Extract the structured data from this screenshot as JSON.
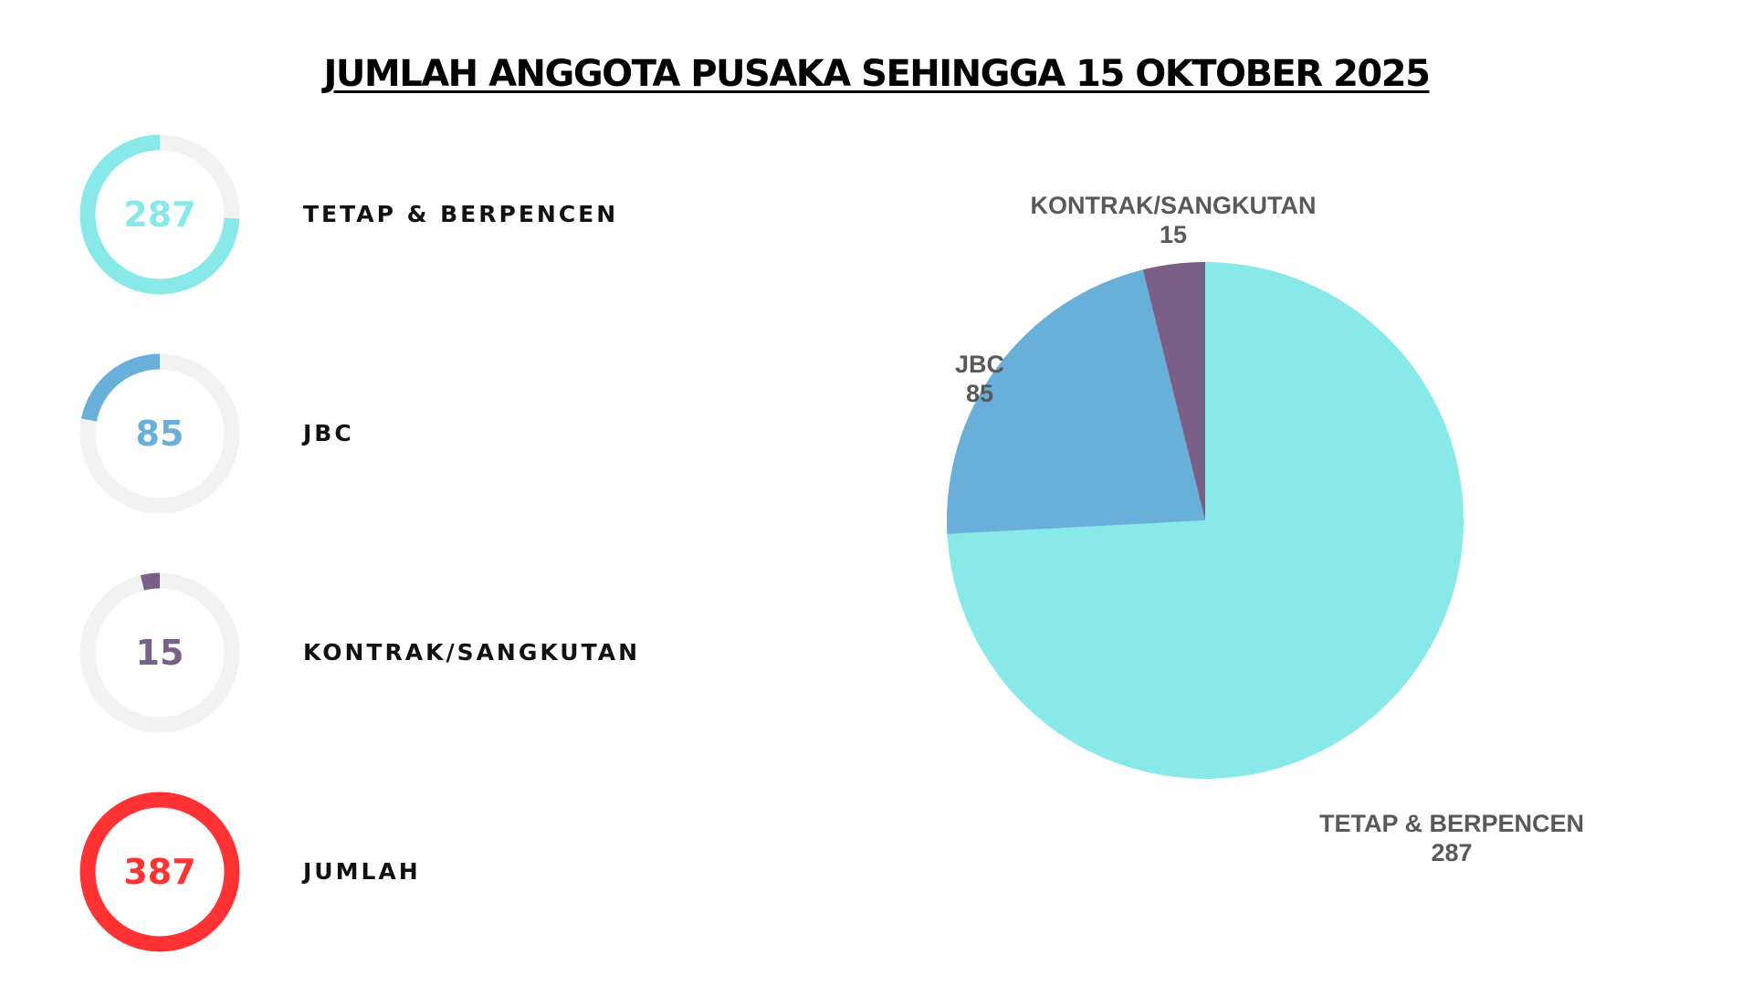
{
  "title": "JUMLAH ANGGOTA PUSAKA SEHINGGA 15 OKTOBER 2025",
  "stats": [
    {
      "label": "TETAP & BERPENCEN",
      "value": "287",
      "fraction": 0.7416,
      "color": "#89e9e8"
    },
    {
      "label": "JBC",
      "value": "85",
      "fraction": 0.2196,
      "color": "#68b0d9"
    },
    {
      "label": "KONTRAK/SANGKUTAN",
      "value": "15",
      "fraction": 0.0388,
      "color": "#7a5f88"
    },
    {
      "label": "JUMLAH",
      "value": "387",
      "fraction": 1.0,
      "color": "#ff3333"
    }
  ],
  "ring_track_color": "#f2f2f2",
  "chart_data": {
    "type": "pie",
    "title": "JUMLAH ANGGOTA PUSAKA SEHINGGA 15 OKTOBER 2025",
    "categories": [
      "TETAP & BERPENCEN",
      "JBC",
      "KONTRAK/SANGKUTAN"
    ],
    "values": [
      287,
      85,
      15
    ],
    "colors": [
      "#89e9e8",
      "#68b0d9",
      "#7a5f88"
    ],
    "value_labels": [
      "287",
      "85",
      "15"
    ]
  }
}
